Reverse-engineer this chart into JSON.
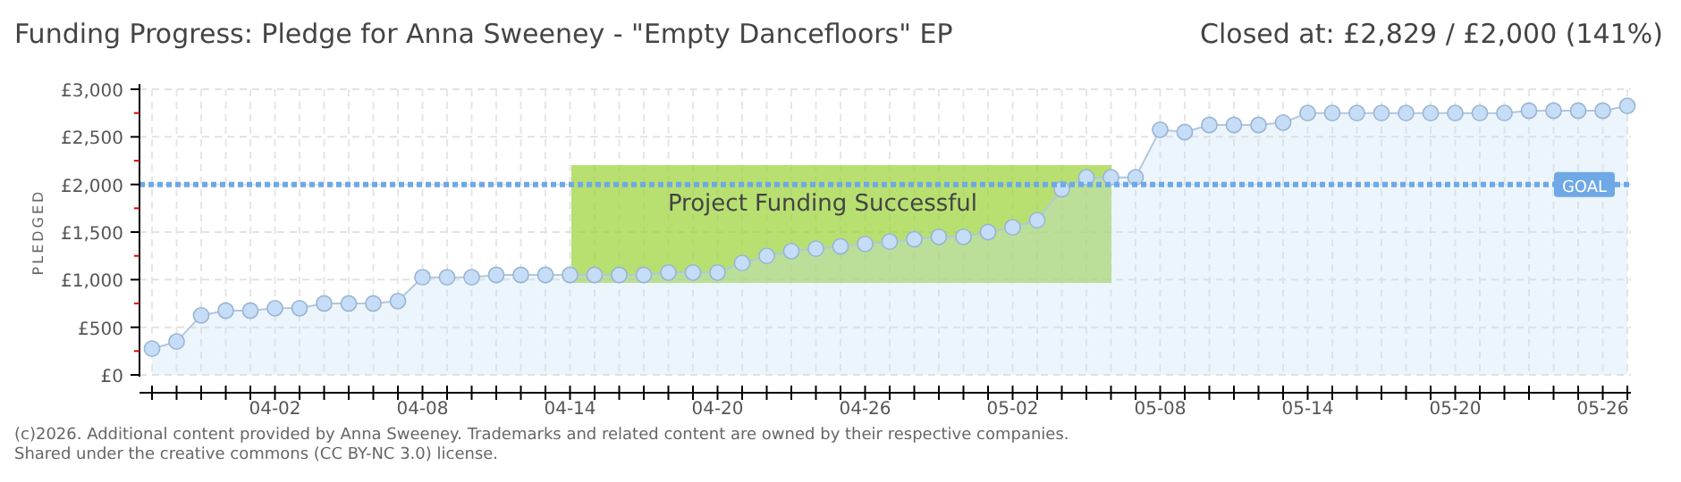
{
  "chart_data": {
    "type": "area",
    "title": "Funding Progress: Pledge for Anna Sweeney - \"Empty Dancefloors\" EP",
    "subtitle": "Closed at:  £2,829 / £2,000 (141%)",
    "ylabel": "PLEDGED",
    "x": [
      "--03-28",
      "--03-29",
      "--03-30",
      "--03-31",
      "--04-01",
      "--04-02",
      "--04-03",
      "--04-04",
      "--04-05",
      "--04-06",
      "--04-07",
      "--04-08",
      "--04-09",
      "--04-10",
      "--04-11",
      "--04-12",
      "--04-13",
      "--04-14",
      "--04-15",
      "--04-16",
      "--04-17",
      "--04-18",
      "--04-19",
      "--04-20",
      "--04-21",
      "--04-22",
      "--04-23",
      "--04-24",
      "--04-25",
      "--04-26",
      "--04-27",
      "--04-28",
      "--04-29",
      "--04-30",
      "--05-01",
      "--05-02",
      "--05-03",
      "--05-04",
      "--05-05",
      "--05-06",
      "--05-07",
      "--05-08",
      "--05-09",
      "--05-10",
      "--05-11",
      "--05-12",
      "--05-13",
      "--05-14",
      "--05-15",
      "--05-16",
      "--05-17",
      "--05-18",
      "--05-19",
      "--05-20",
      "--05-21",
      "--05-22",
      "--05-23",
      "--05-24",
      "--05-25",
      "--05-26",
      "--05-27"
    ],
    "series": [
      {
        "color": "#c5ddf6",
        "values": [
          275,
          350,
          625,
          675,
          675,
          700,
          700,
          750,
          750,
          750,
          775,
          1025,
          1025,
          1025,
          1050,
          1050,
          1050,
          1050,
          1050,
          1050,
          1050,
          1075,
          1075,
          1075,
          1175,
          1250,
          1300,
          1325,
          1350,
          1375,
          1400,
          1425,
          1450,
          1450,
          1500,
          1550,
          1625,
          1950,
          2075,
          2075,
          2075,
          2575,
          2550,
          2625,
          2625,
          2625,
          2650,
          2750,
          2750,
          2750,
          2750,
          2750,
          2750,
          2750,
          2750,
          2750,
          2775,
          2775,
          2775,
          2775,
          2825
        ]
      }
    ],
    "xlim": [
      "--03-28",
      "--05-27"
    ],
    "xticks": [
      {
        "value": "--03-28",
        "label": null
      },
      {
        "value": "--03-29",
        "label": null
      },
      {
        "value": "--03-30",
        "label": null
      },
      {
        "value": "--03-31",
        "label": null
      },
      {
        "value": "--04-01",
        "label": null
      },
      {
        "value": "--04-02",
        "label": "04-02"
      },
      {
        "value": "--04-03",
        "label": null
      },
      {
        "value": "--04-04",
        "label": null
      },
      {
        "value": "--04-05",
        "label": null
      },
      {
        "value": "--04-06",
        "label": null
      },
      {
        "value": "--04-07",
        "label": null
      },
      {
        "value": "--04-08",
        "label": "04-08"
      },
      {
        "value": "--04-09",
        "label": null
      },
      {
        "value": "--04-10",
        "label": null
      },
      {
        "value": "--04-11",
        "label": null
      },
      {
        "value": "--04-12",
        "label": null
      },
      {
        "value": "--04-13",
        "label": null
      },
      {
        "value": "--04-14",
        "label": "04-14"
      },
      {
        "value": "--04-15",
        "label": null
      },
      {
        "value": "--04-16",
        "label": null
      },
      {
        "value": "--04-17",
        "label": null
      },
      {
        "value": "--04-18",
        "label": null
      },
      {
        "value": "--04-19",
        "label": null
      },
      {
        "value": "--04-20",
        "label": "04-20"
      },
      {
        "value": "--04-21",
        "label": null
      },
      {
        "value": "--04-22",
        "label": null
      },
      {
        "value": "--04-23",
        "label": null
      },
      {
        "value": "--04-24",
        "label": null
      },
      {
        "value": "--04-25",
        "label": null
      },
      {
        "value": "--04-26",
        "label": "04-26"
      },
      {
        "value": "--04-27",
        "label": null
      },
      {
        "value": "--04-28",
        "label": null
      },
      {
        "value": "--04-29",
        "label": null
      },
      {
        "value": "--04-30",
        "label": null
      },
      {
        "value": "--05-01",
        "label": null
      },
      {
        "value": "--05-02",
        "label": "05-02"
      },
      {
        "value": "--05-03",
        "label": null
      },
      {
        "value": "--05-04",
        "label": null
      },
      {
        "value": "--05-05",
        "label": null
      },
      {
        "value": "--05-06",
        "label": null
      },
      {
        "value": "--05-07",
        "label": null
      },
      {
        "value": "--05-08",
        "label": "05-08"
      },
      {
        "value": "--05-09",
        "label": null
      },
      {
        "value": "--05-10",
        "label": null
      },
      {
        "value": "--05-11",
        "label": null
      },
      {
        "value": "--05-12",
        "label": null
      },
      {
        "value": "--05-13",
        "label": null
      },
      {
        "value": "--05-14",
        "label": "05-14"
      },
      {
        "value": "--05-15",
        "label": null
      },
      {
        "value": "--05-16",
        "label": null
      },
      {
        "value": "--05-17",
        "label": null
      },
      {
        "value": "--05-18",
        "label": null
      },
      {
        "value": "--05-19",
        "label": null
      },
      {
        "value": "--05-20",
        "label": "05-20"
      },
      {
        "value": "--05-21",
        "label": null
      },
      {
        "value": "--05-22",
        "label": null
      },
      {
        "value": "--05-23",
        "label": null
      },
      {
        "value": "--05-24",
        "label": null
      },
      {
        "value": "--05-25",
        "label": null
      },
      {
        "value": "--05-26",
        "label": "05-26"
      },
      {
        "value": "--05-27",
        "label": null
      }
    ],
    "ylim": [
      0,
      3000
    ],
    "yticks": [
      {
        "value": 0,
        "label": "£0"
      },
      {
        "value": 250,
        "label": null
      },
      {
        "value": 500,
        "label": "£500"
      },
      {
        "value": 750,
        "label": null
      },
      {
        "value": 1000,
        "label": "£1,000"
      },
      {
        "value": 1250,
        "label": null
      },
      {
        "value": 1500,
        "label": "£1,500"
      },
      {
        "value": 1750,
        "label": null
      },
      {
        "value": 2000,
        "label": "£2,000"
      },
      {
        "value": 2250,
        "label": null
      },
      {
        "value": 2500,
        "label": "£2,500"
      },
      {
        "value": 2750,
        "label": null
      },
      {
        "value": 3000,
        "label": "£3,000"
      }
    ],
    "grid": true,
    "marker": "circle",
    "ref_lines": [
      {
        "axis": "y",
        "value": 2000,
        "label": "GOAL",
        "color": "#6fa8e6",
        "line_style": "dotted"
      }
    ],
    "annotations": [
      "Project Funding Successful",
      "(c)2026. Additional content provided by Anna Sweeney. Trademarks and related content are owned by their respective companies.",
      "Shared under the creative commons (CC BY-NC 3.0) license."
    ]
  }
}
